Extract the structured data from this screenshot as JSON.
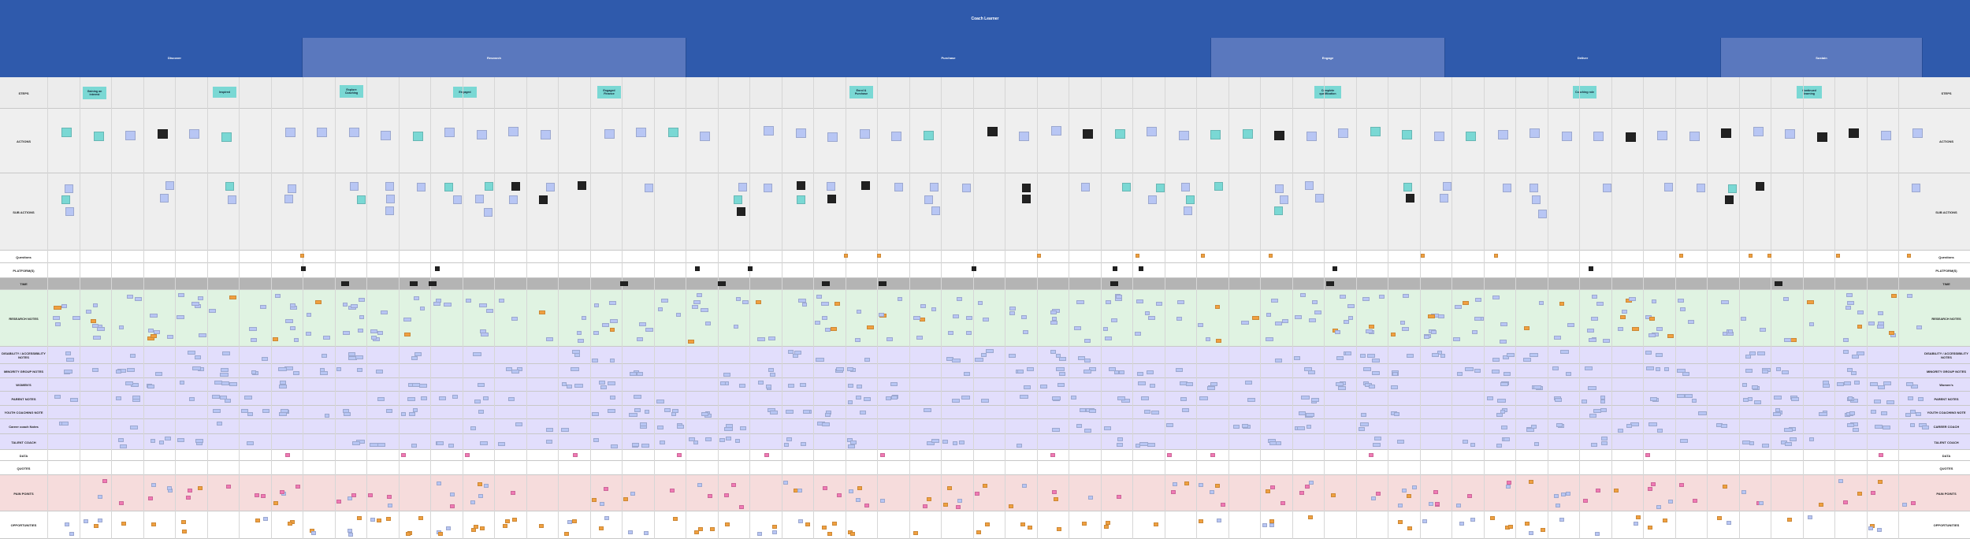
{
  "map": {
    "title": "Coach Learner"
  },
  "phases": [
    {
      "label": "Discover"
    },
    {
      "label": "Research"
    },
    {
      "label": "Purchase"
    },
    {
      "label": "Engage"
    },
    {
      "label": "Deliver"
    },
    {
      "label": "Sustain"
    }
  ],
  "rows": [
    {
      "label": "STEPS"
    },
    {
      "label": "ACTIONS"
    },
    {
      "label": "SUB ACTIONS"
    },
    {
      "label": "Questions"
    },
    {
      "label": "PLATFORM(S)"
    },
    {
      "label": "TIME"
    },
    {
      "label": "RESEARCH NOTES"
    },
    {
      "label": "DISABILITY / ACCESSIBILITY NOTES"
    },
    {
      "label": "MINORITY GROUP NOTES"
    },
    {
      "label": "WOMEN'S"
    },
    {
      "label": "PARENT NOTES"
    },
    {
      "label": "YOUTH COACHING NOTE"
    },
    {
      "label": "Career coach Notes"
    },
    {
      "label": "TALENT COACH"
    },
    {
      "label": "DATA"
    },
    {
      "label": "QUOTES"
    },
    {
      "label": "PAIN POINTS"
    },
    {
      "label": "OPPORTUNITIES"
    }
  ],
  "rows_right": [
    {
      "label": "STEPS"
    },
    {
      "label": "ACTIONS"
    },
    {
      "label": "SUB ACTIONS"
    },
    {
      "label": "Questions"
    },
    {
      "label": "PLATFORM(S)"
    },
    {
      "label": "TIME"
    },
    {
      "label": "RESEARCH NOTES"
    },
    {
      "label": "DISABILITY / ACCESSIBILITY NOTES"
    },
    {
      "label": "MINORITY GROUP NOTES"
    },
    {
      "label": "Women's"
    },
    {
      "label": "PARENT NOTES"
    },
    {
      "label": "YOUTH COACHING NOTE"
    },
    {
      "label": "CAREER COACH"
    },
    {
      "label": "TALENT COACH"
    },
    {
      "label": "DATA"
    },
    {
      "label": "QUOTES"
    },
    {
      "label": "PAIN POINTS"
    },
    {
      "label": "OPPORTUNITIES"
    }
  ],
  "steps": [
    {
      "label": "Gaining an interest"
    },
    {
      "label": "Inspired"
    },
    {
      "label": "Explore Coaching"
    },
    {
      "label": "Engaged"
    },
    {
      "label": "Engaged Finance"
    },
    {
      "label": "Enrol & Purchase"
    },
    {
      "label": "Complete qualification"
    },
    {
      "label": "Coaching role"
    },
    {
      "label": "Continued learning"
    }
  ],
  "colors": {
    "header_blue": "#2f5aac",
    "phase_light": "#5a78be",
    "step_teal": "#7ad8d4",
    "research_green": "#e0f3e2",
    "persona_lavender": "#e2defc",
    "pain_pink": "#f6dcdc",
    "time_gray": "#b4b4b4",
    "note_blue": "#b8c6f4",
    "note_orange": "#f0a040",
    "note_pink": "#f07ab4",
    "note_black": "#222222"
  }
}
